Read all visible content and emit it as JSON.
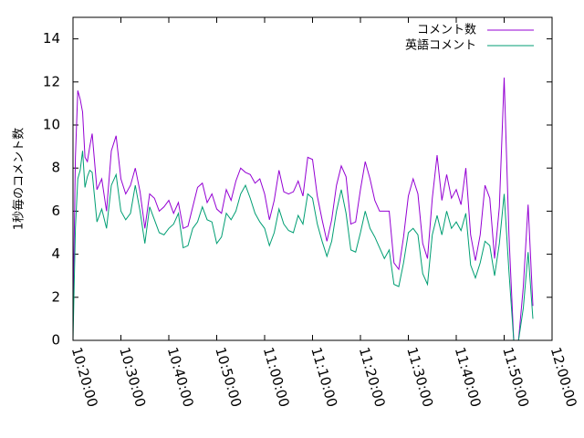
{
  "chart_data": {
    "type": "line",
    "ylabel": "1秒毎のコメント数",
    "xlabel": "",
    "xlim": [
      "10:20:00",
      "12:00:00"
    ],
    "ylim": [
      0,
      15
    ],
    "x_tick_labels": [
      "10:20:00",
      "10:30:00",
      "10:40:00",
      "10:50:00",
      "11:00:00",
      "11:10:00",
      "11:20:00",
      "11:30:00",
      "11:40:00",
      "11:50:00",
      "12:00:00"
    ],
    "y_tick_labels": [
      "0",
      "2",
      "4",
      "6",
      "8",
      "10",
      "12",
      "14"
    ],
    "legend_position": "top-right",
    "series": [
      {
        "name": "コメント数",
        "color": "#9400d3",
        "points": [
          [
            "10:20:00",
            1.0
          ],
          [
            "10:20:30",
            8.5
          ],
          [
            "10:21:00",
            11.6
          ],
          [
            "10:21:30",
            11.2
          ],
          [
            "10:22:00",
            10.6
          ],
          [
            "10:22:30",
            8.5
          ],
          [
            "10:23:00",
            8.3
          ],
          [
            "10:23:30",
            9.0
          ],
          [
            "10:24:00",
            9.6
          ],
          [
            "10:25:00",
            7.0
          ],
          [
            "10:26:00",
            7.5
          ],
          [
            "10:27:00",
            6.0
          ],
          [
            "10:28:00",
            8.8
          ],
          [
            "10:29:00",
            9.5
          ],
          [
            "10:30:00",
            7.5
          ],
          [
            "10:31:00",
            6.8
          ],
          [
            "10:32:00",
            7.2
          ],
          [
            "10:33:00",
            8.0
          ],
          [
            "10:34:00",
            6.9
          ],
          [
            "10:35:00",
            5.2
          ],
          [
            "10:36:00",
            6.8
          ],
          [
            "10:37:00",
            6.6
          ],
          [
            "10:38:00",
            6.0
          ],
          [
            "10:39:00",
            6.2
          ],
          [
            "10:40:00",
            6.5
          ],
          [
            "10:41:00",
            5.9
          ],
          [
            "10:42:00",
            6.4
          ],
          [
            "10:43:00",
            5.2
          ],
          [
            "10:44:00",
            5.3
          ],
          [
            "10:45:00",
            6.2
          ],
          [
            "10:46:00",
            7.1
          ],
          [
            "10:47:00",
            7.3
          ],
          [
            "10:48:00",
            6.4
          ],
          [
            "10:49:00",
            6.8
          ],
          [
            "10:50:00",
            6.1
          ],
          [
            "10:51:00",
            5.9
          ],
          [
            "10:52:00",
            7.0
          ],
          [
            "10:53:00",
            6.5
          ],
          [
            "10:54:00",
            7.4
          ],
          [
            "10:55:00",
            8.0
          ],
          [
            "10:56:00",
            7.8
          ],
          [
            "10:57:00",
            7.7
          ],
          [
            "10:58:00",
            7.3
          ],
          [
            "10:59:00",
            7.5
          ],
          [
            "11:00:00",
            6.8
          ],
          [
            "11:01:00",
            5.6
          ],
          [
            "11:02:00",
            6.5
          ],
          [
            "11:03:00",
            7.9
          ],
          [
            "11:04:00",
            6.9
          ],
          [
            "11:05:00",
            6.8
          ],
          [
            "11:06:00",
            6.9
          ],
          [
            "11:07:00",
            7.4
          ],
          [
            "11:08:00",
            6.7
          ],
          [
            "11:09:00",
            8.5
          ],
          [
            "11:10:00",
            8.4
          ],
          [
            "11:11:00",
            6.7
          ],
          [
            "11:12:00",
            5.6
          ],
          [
            "11:13:00",
            4.6
          ],
          [
            "11:14:00",
            5.6
          ],
          [
            "11:15:00",
            7.2
          ],
          [
            "11:16:00",
            8.1
          ],
          [
            "11:17:00",
            7.6
          ],
          [
            "11:18:00",
            5.4
          ],
          [
            "11:19:00",
            5.5
          ],
          [
            "11:20:00",
            7.0
          ],
          [
            "11:21:00",
            8.3
          ],
          [
            "11:22:00",
            7.5
          ],
          [
            "11:23:00",
            6.5
          ],
          [
            "11:24:00",
            6.0
          ],
          [
            "11:25:00",
            6.0
          ],
          [
            "11:26:00",
            6.0
          ],
          [
            "11:27:00",
            3.6
          ],
          [
            "11:28:00",
            3.3
          ],
          [
            "11:29:00",
            4.8
          ],
          [
            "11:30:00",
            6.7
          ],
          [
            "11:31:00",
            7.5
          ],
          [
            "11:32:00",
            6.8
          ],
          [
            "11:33:00",
            4.5
          ],
          [
            "11:34:00",
            3.8
          ],
          [
            "11:35:00",
            6.6
          ],
          [
            "11:36:00",
            8.6
          ],
          [
            "11:37:00",
            6.5
          ],
          [
            "11:38:00",
            7.7
          ],
          [
            "11:39:00",
            6.6
          ],
          [
            "11:40:00",
            7.0
          ],
          [
            "11:41:00",
            6.3
          ],
          [
            "11:42:00",
            8.0
          ],
          [
            "11:43:00",
            4.9
          ],
          [
            "11:44:00",
            3.7
          ],
          [
            "11:45:00",
            4.9
          ],
          [
            "11:46:00",
            7.2
          ],
          [
            "11:47:00",
            6.6
          ],
          [
            "11:48:00",
            3.8
          ],
          [
            "11:49:00",
            6.2
          ],
          [
            "11:50:00",
            12.2
          ],
          [
            "11:51:00",
            4.9
          ],
          [
            "11:52:00",
            0.0
          ],
          [
            "11:53:00",
            0.0
          ],
          [
            "11:54:00",
            2.5
          ],
          [
            "11:55:00",
            6.3
          ],
          [
            "11:56:00",
            1.6
          ]
        ]
      },
      {
        "name": "英語コメント",
        "color": "#009e73",
        "points": [
          [
            "10:20:00",
            0.0
          ],
          [
            "10:20:30",
            5.2
          ],
          [
            "10:21:00",
            7.5
          ],
          [
            "10:21:30",
            7.9
          ],
          [
            "10:22:00",
            8.8
          ],
          [
            "10:22:30",
            7.1
          ],
          [
            "10:23:00",
            7.6
          ],
          [
            "10:23:30",
            7.9
          ],
          [
            "10:24:00",
            7.8
          ],
          [
            "10:25:00",
            5.5
          ],
          [
            "10:26:00",
            6.1
          ],
          [
            "10:27:00",
            5.2
          ],
          [
            "10:28:00",
            7.2
          ],
          [
            "10:29:00",
            7.7
          ],
          [
            "10:30:00",
            6.0
          ],
          [
            "10:31:00",
            5.6
          ],
          [
            "10:32:00",
            5.9
          ],
          [
            "10:33:00",
            7.2
          ],
          [
            "10:34:00",
            6.0
          ],
          [
            "10:35:00",
            4.5
          ],
          [
            "10:36:00",
            6.2
          ],
          [
            "10:37:00",
            5.6
          ],
          [
            "10:38:00",
            5.0
          ],
          [
            "10:39:00",
            4.9
          ],
          [
            "10:40:00",
            5.2
          ],
          [
            "10:41:00",
            5.4
          ],
          [
            "10:42:00",
            5.9
          ],
          [
            "10:43:00",
            4.3
          ],
          [
            "10:44:00",
            4.4
          ],
          [
            "10:45:00",
            5.2
          ],
          [
            "10:46:00",
            5.5
          ],
          [
            "10:47:00",
            6.2
          ],
          [
            "10:48:00",
            5.6
          ],
          [
            "10:49:00",
            5.5
          ],
          [
            "10:50:00",
            4.5
          ],
          [
            "10:51:00",
            4.8
          ],
          [
            "10:52:00",
            5.9
          ],
          [
            "10:53:00",
            5.6
          ],
          [
            "10:54:00",
            6.0
          ],
          [
            "10:55:00",
            6.8
          ],
          [
            "10:56:00",
            7.2
          ],
          [
            "10:57:00",
            6.6
          ],
          [
            "10:58:00",
            5.9
          ],
          [
            "10:59:00",
            5.5
          ],
          [
            "11:00:00",
            5.2
          ],
          [
            "11:01:00",
            4.4
          ],
          [
            "11:02:00",
            5.0
          ],
          [
            "11:03:00",
            6.1
          ],
          [
            "11:04:00",
            5.4
          ],
          [
            "11:05:00",
            5.1
          ],
          [
            "11:06:00",
            5.0
          ],
          [
            "11:07:00",
            5.8
          ],
          [
            "11:08:00",
            5.4
          ],
          [
            "11:09:00",
            6.8
          ],
          [
            "11:10:00",
            6.6
          ],
          [
            "11:11:00",
            5.4
          ],
          [
            "11:12:00",
            4.6
          ],
          [
            "11:13:00",
            3.9
          ],
          [
            "11:14:00",
            4.6
          ],
          [
            "11:15:00",
            6.0
          ],
          [
            "11:16:00",
            7.0
          ],
          [
            "11:17:00",
            5.9
          ],
          [
            "11:18:00",
            4.2
          ],
          [
            "11:19:00",
            4.1
          ],
          [
            "11:20:00",
            5.0
          ],
          [
            "11:21:00",
            6.0
          ],
          [
            "11:22:00",
            5.2
          ],
          [
            "11:23:00",
            4.8
          ],
          [
            "11:24:00",
            4.3
          ],
          [
            "11:25:00",
            3.8
          ],
          [
            "11:26:00",
            4.2
          ],
          [
            "11:27:00",
            2.6
          ],
          [
            "11:28:00",
            2.5
          ],
          [
            "11:29:00",
            3.6
          ],
          [
            "11:30:00",
            5.0
          ],
          [
            "11:31:00",
            5.2
          ],
          [
            "11:32:00",
            4.9
          ],
          [
            "11:33:00",
            3.1
          ],
          [
            "11:34:00",
            2.6
          ],
          [
            "11:35:00",
            4.9
          ],
          [
            "11:36:00",
            5.8
          ],
          [
            "11:37:00",
            4.9
          ],
          [
            "11:38:00",
            6.0
          ],
          [
            "11:39:00",
            5.2
          ],
          [
            "11:40:00",
            5.5
          ],
          [
            "11:41:00",
            5.1
          ],
          [
            "11:42:00",
            5.9
          ],
          [
            "11:43:00",
            3.5
          ],
          [
            "11:44:00",
            2.9
          ],
          [
            "11:45:00",
            3.6
          ],
          [
            "11:46:00",
            4.6
          ],
          [
            "11:47:00",
            4.4
          ],
          [
            "11:48:00",
            3.0
          ],
          [
            "11:49:00",
            4.5
          ],
          [
            "11:50:00",
            6.8
          ],
          [
            "11:51:00",
            3.2
          ],
          [
            "11:52:00",
            0.0
          ],
          [
            "11:53:00",
            0.0
          ],
          [
            "11:54:00",
            1.5
          ],
          [
            "11:55:00",
            4.1
          ],
          [
            "11:56:00",
            1.0
          ]
        ]
      }
    ]
  }
}
